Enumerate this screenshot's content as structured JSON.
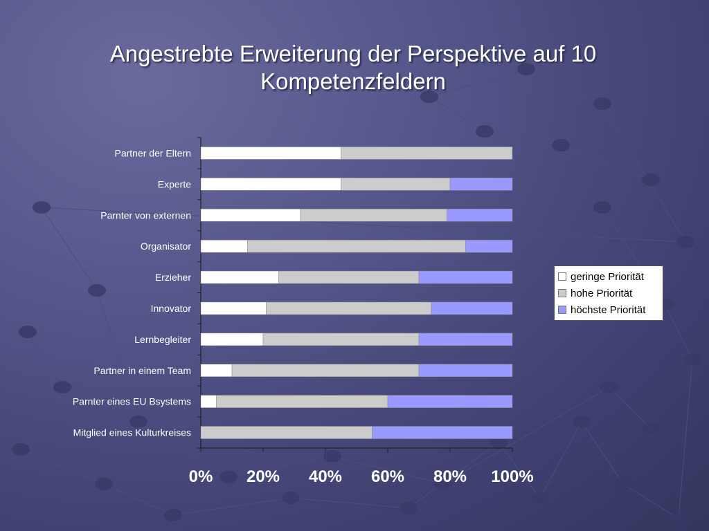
{
  "slide": {
    "title": "Angestrebte Erweiterung der Perspektive auf 10 Kompetenzfeldern"
  },
  "chart_data": {
    "type": "bar",
    "orientation": "horizontal",
    "stacked": "percent",
    "title": "Angestrebte Erweiterung der Perspektive auf 10 Kompetenzfeldern",
    "categories": [
      "Partner der Eltern",
      "Experte",
      "Parnter von externen",
      "Organisator",
      "Erzieher",
      "Innovator",
      "Lernbegleiter",
      "Partner in einem Team",
      "Parnter eines EU Bsystems",
      "Mitglied eines Kulturkreises"
    ],
    "series": [
      {
        "name": "geringe Priorität",
        "color": "#ffffff",
        "values": [
          45,
          45,
          32,
          15,
          25,
          21,
          20,
          10,
          5,
          0
        ]
      },
      {
        "name": "hohe Priorität",
        "color": "#cccccc",
        "values": [
          55,
          35,
          47,
          70,
          45,
          53,
          50,
          60,
          55,
          55
        ]
      },
      {
        "name": "höchste Priorität",
        "color": "#9999ff",
        "values": [
          0,
          20,
          21,
          15,
          30,
          26,
          30,
          30,
          40,
          45
        ]
      }
    ],
    "xlim": [
      0,
      100
    ],
    "xticks": [
      "0%",
      "20%",
      "40%",
      "60%",
      "80%",
      "100%"
    ],
    "grid": false,
    "legend_position": "right"
  }
}
